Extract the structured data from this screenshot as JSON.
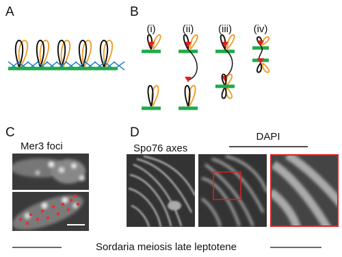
{
  "panels": [
    {
      "label": "A"
    },
    {
      "label": "B",
      "subpanels": [
        "(i)",
        "(ii)",
        "(iii)",
        "(iv)"
      ]
    },
    {
      "label": "C",
      "title": "Mer3 foci"
    },
    {
      "label": "D",
      "images": [
        "Spo76 axes",
        "DAPI"
      ]
    }
  ],
  "caption": "Sordaria meiosis late leptotene"
}
